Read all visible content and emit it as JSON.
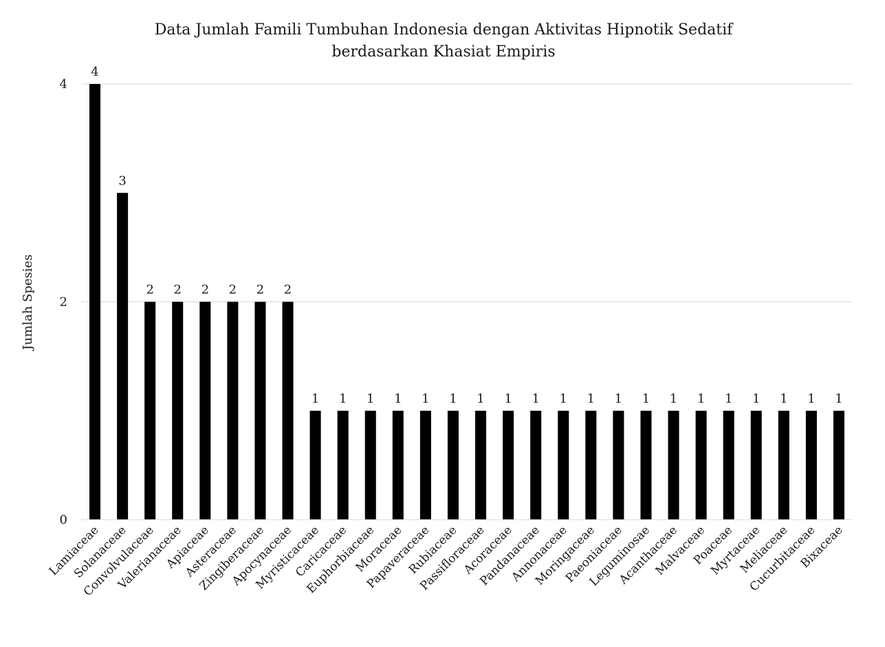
{
  "chart_data": {
    "type": "bar",
    "title": "Data Jumlah Famili Tumbuhan Indonesia dengan Aktivitas Hipnotik Sedatif berdasarkan Khasiat Empiris",
    "title_lines": [
      "Data Jumlah Famili Tumbuhan Indonesia dengan Aktivitas Hipnotik Sedatif",
      "berdasarkan Khasiat Empiris"
    ],
    "xlabel": "",
    "ylabel": "Jumlah Spesies",
    "ylim": [
      0,
      4
    ],
    "yticks": [
      "0",
      "2",
      "4"
    ],
    "grid": true,
    "bar_color": "#000000",
    "grid_color": "#d9d9d9",
    "categories": [
      "Lamiaceae",
      "Solanaceae",
      "Convolvulaceae",
      "Valerianaceae",
      "Apiaceae",
      "Asteraceae",
      "Zingiberaceae",
      "Apocynaceae",
      "Myristicaceae",
      "Caricaceae",
      "Euphorbiaceae",
      "Moraceae",
      "Papaveraceae",
      "Rubiaceae",
      "Passifloraceae",
      "Acoraceae",
      "Pandanaceae",
      "Annonaceae",
      "Moringaceae",
      "Paeoniaceae",
      "Leguminosae",
      "Acanthaceae",
      "Malvaceae",
      "Poaceae",
      "Myrtaceae",
      "Meliaceae",
      "Cucurbitaceae",
      "Bixaceae"
    ],
    "values": [
      4,
      3,
      2,
      2,
      2,
      2,
      2,
      2,
      1,
      1,
      1,
      1,
      1,
      1,
      1,
      1,
      1,
      1,
      1,
      1,
      1,
      1,
      1,
      1,
      1,
      1,
      1,
      1
    ],
    "data_labels": [
      "4",
      "3",
      "2",
      "2",
      "2",
      "2",
      "2",
      "2",
      "1",
      "1",
      "1",
      "1",
      "1",
      "1",
      "1",
      "1",
      "1",
      "1",
      "1",
      "1",
      "1",
      "1",
      "1",
      "1",
      "1",
      "1",
      "1",
      "1"
    ]
  }
}
